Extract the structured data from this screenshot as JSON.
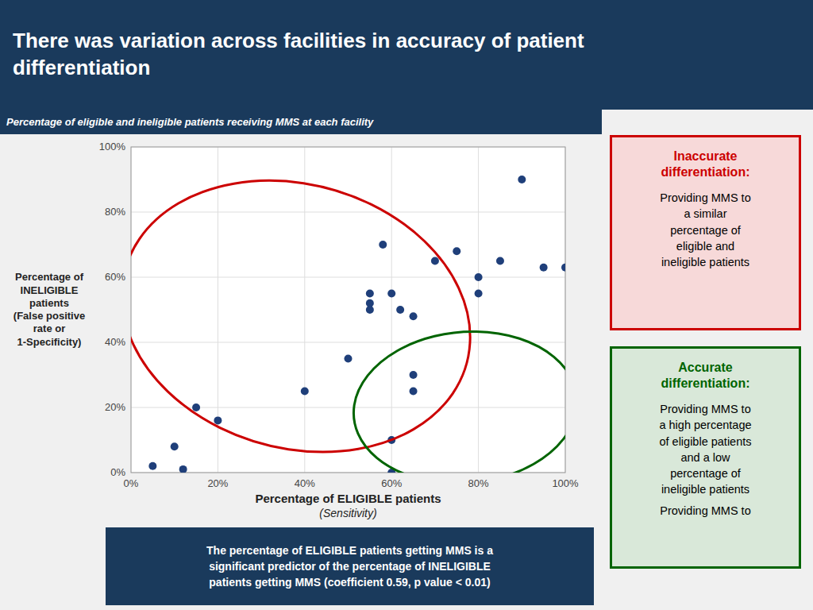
{
  "chart_data": {
    "type": "scatter",
    "title": "There was variation across facilities in accuracy of patient\ndifferentiation",
    "subtitle": "Percentage of eligible and ineligible patients receiving MMS at each facility",
    "x_label": "Percentage of ELIGIBLE patients",
    "x_label_note": "(Sensitivity)",
    "y_label": "Percentage of\nINELIGIBLE\npatients\n(False positive\nrate or\n1-Specificity)",
    "x": [
      5,
      10,
      12,
      15,
      20,
      40,
      50,
      55,
      55,
      55,
      58,
      60,
      60,
      60,
      62,
      65,
      65,
      65,
      70,
      75,
      80,
      80,
      85,
      90,
      95,
      100
    ],
    "values": [
      2,
      8,
      1,
      20,
      16,
      25,
      35,
      50,
      55,
      52,
      70,
      10,
      55,
      0,
      50,
      48,
      25,
      30,
      65,
      68,
      55,
      60,
      65,
      90,
      63,
      63
    ],
    "color": "#1f3f7a",
    "xlim": [
      0,
      100
    ],
    "ylim": [
      0,
      100
    ],
    "xticks": [
      {
        "value": 0,
        "label": "0%"
      },
      {
        "value": 20,
        "label": "20%"
      },
      {
        "value": 40,
        "label": "40%"
      },
      {
        "value": 60,
        "label": "60%"
      },
      {
        "value": 80,
        "label": "80%"
      },
      {
        "value": 100,
        "label": "100%"
      }
    ],
    "yticks": [
      {
        "value": 0,
        "label": "0%"
      },
      {
        "value": 20,
        "label": "20%"
      },
      {
        "value": 40,
        "label": "40%"
      },
      {
        "value": 60,
        "label": "60%"
      },
      {
        "value": 80,
        "label": "80%"
      },
      {
        "value": 100,
        "label": "100%"
      }
    ],
    "grid": true,
    "annotations": [
      {
        "text": "The percentage of ELIGIBLE patients getting MMS is a\nsignificant predictor of the percentage of INELIGIBLE\npatients getting MMS (coefficient 0.59, p value < 0.01)"
      },
      {
        "title": "Inaccurate\ndifferentiation:",
        "text": "Providing MMS to\na similar\npercentage of\neligible and\nineligible patients",
        "color": "#cc0000"
      },
      {
        "title": "Accurate\ndifferentiation:",
        "text": "Providing MMS to\na high percentage\nof eligible patients\nand a low\npercentage of\nineligible patients",
        "note": "Providing MMS to",
        "color": "#006400"
      }
    ]
  }
}
